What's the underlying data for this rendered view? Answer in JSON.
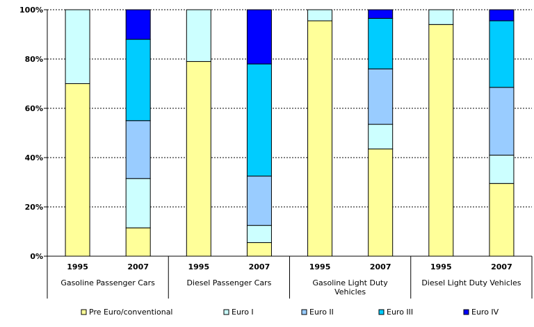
{
  "chart_data": {
    "type": "bar",
    "stacked": true,
    "ylim": [
      0,
      100
    ],
    "yticks": [
      0,
      20,
      40,
      60,
      80,
      100
    ],
    "ytick_labels": [
      "0%",
      "20%",
      "40%",
      "60%",
      "80%",
      "100%"
    ],
    "grid": true,
    "legend_position": "bottom",
    "groups": [
      {
        "name": "Gasoline Passenger Cars",
        "years": [
          "1995",
          "2007"
        ]
      },
      {
        "name": "Diesel Passenger Cars",
        "years": [
          "1995",
          "2007"
        ]
      },
      {
        "name": "Gasoline Light Duty Vehicles",
        "name_lines": [
          "Gasoline Light Duty",
          "Vehicles"
        ],
        "years": [
          "1995",
          "2007"
        ]
      },
      {
        "name": "Diesel Light Duty Vehicles",
        "years": [
          "1995",
          "2007"
        ]
      }
    ],
    "series": [
      {
        "name": "Pre Euro/conventional",
        "color": "#ffff99",
        "values": [
          70,
          11.5,
          79,
          5.5,
          95.5,
          43.5,
          94,
          29.5
        ]
      },
      {
        "name": "Euro I",
        "color": "#ccffff",
        "values": [
          30,
          20,
          21,
          7,
          4.5,
          10,
          6,
          11.5
        ]
      },
      {
        "name": "Euro II",
        "color": "#99ccff",
        "values": [
          0,
          23.5,
          0,
          20,
          0,
          22.5,
          0,
          27.5
        ]
      },
      {
        "name": "Euro III",
        "color": "#00ccff",
        "values": [
          0,
          33,
          0,
          45.5,
          0,
          20.5,
          0,
          27
        ]
      },
      {
        "name": "Euro IV",
        "color": "#0000ff",
        "values": [
          0,
          12,
          0,
          22,
          0,
          3.5,
          0,
          4.5
        ]
      }
    ]
  }
}
